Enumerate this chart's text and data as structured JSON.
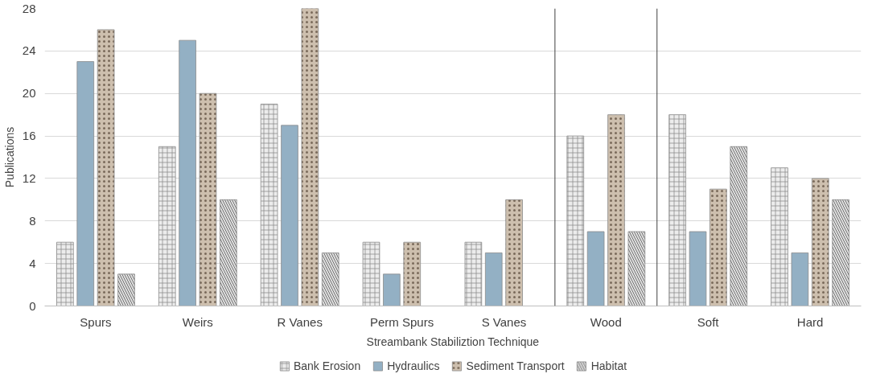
{
  "chart_data": {
    "type": "bar",
    "xlabel": "Streambank Stabiliztion Technique",
    "ylabel": "Publications",
    "categories": [
      "Spurs",
      "Weirs",
      "R Vanes",
      "Perm Spurs",
      "S Vanes",
      "Wood",
      "Soft",
      "Hard"
    ],
    "series": [
      {
        "name": "Bank Erosion",
        "color": "#ececec",
        "values": [
          6,
          15,
          19,
          6,
          6,
          16,
          18,
          13
        ]
      },
      {
        "name": "Hydraulics",
        "color": "#93b0c4",
        "values": [
          23,
          25,
          17,
          3,
          5,
          7,
          7,
          5
        ]
      },
      {
        "name": "Sediment Transport",
        "color": "#cdbfae",
        "values": [
          26,
          20,
          28,
          6,
          10,
          18,
          11,
          12
        ]
      },
      {
        "name": "Habitat",
        "color": "#e0e0e0",
        "values": [
          3,
          10,
          5,
          null,
          null,
          7,
          15,
          10
        ]
      }
    ],
    "ylim": [
      0,
      28
    ],
    "yticks": [
      0,
      4,
      8,
      12,
      16,
      20,
      24,
      28
    ],
    "grid": "y",
    "legend": "bottom"
  }
}
